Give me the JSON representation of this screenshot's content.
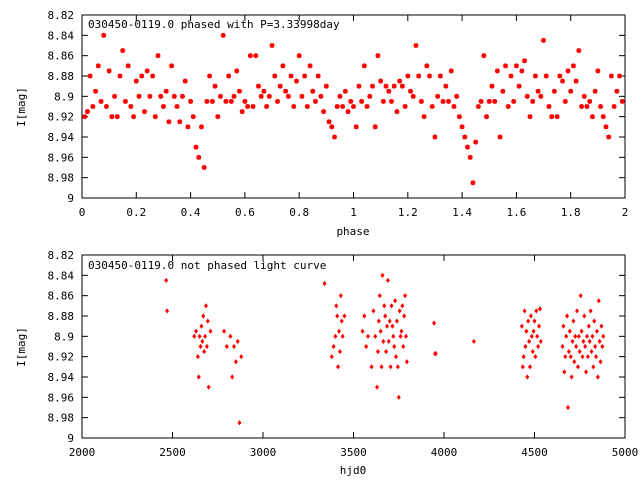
{
  "colors": {
    "points": "#ff0000",
    "axes": "#000000",
    "background": "#ffffff"
  },
  "chart_data": [
    {
      "type": "scatter",
      "title": "030450-0119.0 phased with P=3.33998day",
      "xlabel": "phase",
      "ylabel": "I[mag]",
      "xlim": [
        0,
        2
      ],
      "ylim": [
        9,
        8.82
      ],
      "y_inverted": true,
      "grid": false,
      "x_ticks": [
        "0",
        "0.2",
        "0.4",
        "0.6",
        "0.8",
        "1",
        "1.2",
        "1.4",
        "1.6",
        "1.8",
        "2"
      ],
      "y_ticks": [
        "8.82",
        "8.84",
        "8.86",
        "8.88",
        "8.9",
        "8.92",
        "8.94",
        "8.96",
        "8.98",
        "9"
      ],
      "marker": "star",
      "points": [
        [
          0.01,
          8.92
        ],
        [
          0.02,
          8.915
        ],
        [
          0.03,
          8.88
        ],
        [
          0.04,
          8.91
        ],
        [
          0.05,
          8.895
        ],
        [
          0.06,
          8.87
        ],
        [
          0.07,
          8.905
        ],
        [
          0.08,
          8.84
        ],
        [
          0.09,
          8.91
        ],
        [
          0.1,
          8.875
        ],
        [
          0.11,
          8.92
        ],
        [
          0.12,
          8.9
        ],
        [
          0.13,
          8.92
        ],
        [
          0.14,
          8.88
        ],
        [
          0.15,
          8.855
        ],
        [
          0.16,
          8.905
        ],
        [
          0.17,
          8.87
        ],
        [
          0.18,
          8.91
        ],
        [
          0.19,
          8.92
        ],
        [
          0.2,
          8.885
        ],
        [
          0.21,
          8.9
        ],
        [
          0.22,
          8.88
        ],
        [
          0.23,
          8.915
        ],
        [
          0.24,
          8.875
        ],
        [
          0.25,
          8.9
        ],
        [
          0.26,
          8.88
        ],
        [
          0.27,
          8.92
        ],
        [
          0.28,
          8.86
        ],
        [
          0.29,
          8.9
        ],
        [
          0.3,
          8.91
        ],
        [
          0.31,
          8.895
        ],
        [
          0.32,
          8.925
        ],
        [
          0.33,
          8.87
        ],
        [
          0.34,
          8.9
        ],
        [
          0.35,
          8.91
        ],
        [
          0.36,
          8.925
        ],
        [
          0.37,
          8.9
        ],
        [
          0.38,
          8.885
        ],
        [
          0.39,
          8.93
        ],
        [
          0.4,
          8.905
        ],
        [
          0.41,
          8.92
        ],
        [
          0.42,
          8.95
        ],
        [
          0.43,
          8.96
        ],
        [
          0.44,
          8.93
        ],
        [
          0.45,
          8.97
        ],
        [
          0.46,
          8.905
        ],
        [
          0.47,
          8.88
        ],
        [
          0.48,
          8.905
        ],
        [
          0.49,
          8.89
        ],
        [
          0.5,
          8.92
        ],
        [
          0.51,
          8.9
        ],
        [
          0.52,
          8.84
        ],
        [
          0.53,
          8.905
        ],
        [
          0.54,
          8.88
        ],
        [
          0.55,
          8.905
        ],
        [
          0.56,
          8.9
        ],
        [
          0.57,
          8.875
        ],
        [
          0.58,
          8.895
        ],
        [
          0.59,
          8.915
        ],
        [
          0.6,
          8.905
        ],
        [
          0.61,
          8.91
        ],
        [
          0.62,
          8.86
        ],
        [
          0.63,
          8.91
        ],
        [
          0.64,
          8.86
        ],
        [
          0.65,
          8.89
        ],
        [
          0.66,
          8.9
        ],
        [
          0.67,
          8.895
        ],
        [
          0.68,
          8.91
        ],
        [
          0.69,
          8.9
        ],
        [
          0.7,
          8.85
        ],
        [
          0.71,
          8.88
        ],
        [
          0.72,
          8.905
        ],
        [
          0.73,
          8.89
        ],
        [
          0.74,
          8.87
        ],
        [
          0.75,
          8.895
        ],
        [
          0.76,
          8.9
        ],
        [
          0.77,
          8.88
        ],
        [
          0.78,
          8.91
        ],
        [
          0.79,
          8.885
        ],
        [
          0.8,
          8.86
        ],
        [
          0.81,
          8.9
        ],
        [
          0.82,
          8.88
        ],
        [
          0.83,
          8.91
        ],
        [
          0.84,
          8.87
        ],
        [
          0.85,
          8.895
        ],
        [
          0.86,
          8.905
        ],
        [
          0.87,
          8.88
        ],
        [
          0.88,
          8.9
        ],
        [
          0.89,
          8.915
        ],
        [
          0.9,
          8.89
        ],
        [
          0.91,
          8.925
        ],
        [
          0.92,
          8.93
        ],
        [
          0.93,
          8.94
        ],
        [
          0.94,
          8.91
        ],
        [
          0.95,
          8.9
        ],
        [
          0.96,
          8.91
        ],
        [
          0.97,
          8.895
        ],
        [
          0.98,
          8.915
        ],
        [
          0.99,
          8.905
        ],
        [
          1.0,
          8.91
        ],
        [
          1.01,
          8.93
        ],
        [
          1.02,
          8.89
        ],
        [
          1.03,
          8.905
        ],
        [
          1.04,
          8.87
        ],
        [
          1.05,
          8.91
        ],
        [
          1.06,
          8.9
        ],
        [
          1.07,
          8.89
        ],
        [
          1.08,
          8.93
        ],
        [
          1.09,
          8.86
        ],
        [
          1.1,
          8.885
        ],
        [
          1.11,
          8.905
        ],
        [
          1.12,
          8.89
        ],
        [
          1.13,
          8.895
        ],
        [
          1.14,
          8.905
        ],
        [
          1.15,
          8.89
        ],
        [
          1.16,
          8.915
        ],
        [
          1.17,
          8.885
        ],
        [
          1.18,
          8.89
        ],
        [
          1.19,
          8.91
        ],
        [
          1.2,
          8.88
        ],
        [
          1.21,
          8.895
        ],
        [
          1.22,
          8.9
        ],
        [
          1.23,
          8.85
        ],
        [
          1.24,
          8.88
        ],
        [
          1.25,
          8.905
        ],
        [
          1.26,
          8.92
        ],
        [
          1.27,
          8.87
        ],
        [
          1.28,
          8.88
        ],
        [
          1.29,
          8.91
        ],
        [
          1.3,
          8.94
        ],
        [
          1.31,
          8.9
        ],
        [
          1.32,
          8.88
        ],
        [
          1.33,
          8.905
        ],
        [
          1.34,
          8.89
        ],
        [
          1.35,
          8.905
        ],
        [
          1.36,
          8.875
        ],
        [
          1.37,
          8.91
        ],
        [
          1.38,
          8.9
        ],
        [
          1.39,
          8.92
        ],
        [
          1.4,
          8.93
        ],
        [
          1.41,
          8.94
        ],
        [
          1.42,
          8.95
        ],
        [
          1.43,
          8.96
        ],
        [
          1.44,
          8.985
        ],
        [
          1.45,
          8.945
        ],
        [
          1.46,
          8.91
        ],
        [
          1.47,
          8.905
        ],
        [
          1.48,
          8.86
        ],
        [
          1.49,
          8.92
        ],
        [
          1.5,
          8.905
        ],
        [
          1.51,
          8.89
        ],
        [
          1.52,
          8.905
        ],
        [
          1.53,
          8.875
        ],
        [
          1.54,
          8.94
        ],
        [
          1.55,
          8.895
        ],
        [
          1.56,
          8.87
        ],
        [
          1.57,
          8.91
        ],
        [
          1.58,
          8.88
        ],
        [
          1.59,
          8.905
        ],
        [
          1.6,
          8.87
        ],
        [
          1.61,
          8.89
        ],
        [
          1.62,
          8.875
        ],
        [
          1.63,
          8.865
        ],
        [
          1.64,
          8.9
        ],
        [
          1.65,
          8.92
        ],
        [
          1.66,
          8.905
        ],
        [
          1.67,
          8.88
        ],
        [
          1.68,
          8.895
        ],
        [
          1.69,
          8.9
        ],
        [
          1.7,
          8.845
        ],
        [
          1.71,
          8.88
        ],
        [
          1.72,
          8.91
        ],
        [
          1.73,
          8.92
        ],
        [
          1.74,
          8.895
        ],
        [
          1.75,
          8.92
        ],
        [
          1.76,
          8.88
        ],
        [
          1.77,
          8.885
        ],
        [
          1.78,
          8.905
        ],
        [
          1.79,
          8.875
        ],
        [
          1.8,
          8.895
        ],
        [
          1.81,
          8.87
        ],
        [
          1.82,
          8.885
        ],
        [
          1.83,
          8.855
        ],
        [
          1.84,
          8.91
        ],
        [
          1.85,
          8.9
        ],
        [
          1.86,
          8.91
        ],
        [
          1.87,
          8.905
        ],
        [
          1.88,
          8.92
        ],
        [
          1.89,
          8.895
        ],
        [
          1.9,
          8.875
        ],
        [
          1.91,
          8.91
        ],
        [
          1.92,
          8.92
        ],
        [
          1.93,
          8.93
        ],
        [
          1.94,
          8.94
        ],
        [
          1.95,
          8.88
        ],
        [
          1.96,
          8.91
        ],
        [
          1.97,
          8.895
        ],
        [
          1.98,
          8.88
        ],
        [
          1.99,
          8.905
        ]
      ]
    },
    {
      "type": "scatter",
      "title": "030450-0119.0 not phased light curve",
      "xlabel": "hjd0",
      "ylabel": "I[mag]",
      "xlim": [
        2000,
        5000
      ],
      "ylim": [
        9,
        8.82
      ],
      "y_inverted": true,
      "grid": false,
      "x_ticks": [
        "2000",
        "2500",
        "3000",
        "3500",
        "4000",
        "4500",
        "5000"
      ],
      "y_ticks": [
        "8.82",
        "8.84",
        "8.86",
        "8.88",
        "8.9",
        "8.92",
        "8.94",
        "8.96",
        "8.98",
        "9"
      ],
      "marker": "diamond",
      "points": [
        [
          2465,
          8.845
        ],
        [
          2470,
          8.875
        ],
        [
          2620,
          8.9
        ],
        [
          2630,
          8.895
        ],
        [
          2640,
          8.92
        ],
        [
          2645,
          8.94
        ],
        [
          2650,
          8.9
        ],
        [
          2655,
          8.91
        ],
        [
          2660,
          8.89
        ],
        [
          2665,
          8.905
        ],
        [
          2670,
          8.88
        ],
        [
          2675,
          8.915
        ],
        [
          2680,
          8.9
        ],
        [
          2685,
          8.87
        ],
        [
          2690,
          8.91
        ],
        [
          2695,
          8.885
        ],
        [
          2700,
          8.95
        ],
        [
          2710,
          8.895
        ],
        [
          2785,
          8.895
        ],
        [
          2800,
          8.91
        ],
        [
          2820,
          8.9
        ],
        [
          2830,
          8.94
        ],
        [
          2840,
          8.91
        ],
        [
          2850,
          8.925
        ],
        [
          2860,
          8.905
        ],
        [
          2870,
          8.985
        ],
        [
          2880,
          8.92
        ],
        [
          3340,
          8.848
        ],
        [
          3380,
          8.92
        ],
        [
          3390,
          8.91
        ],
        [
          3400,
          8.9
        ],
        [
          3405,
          8.87
        ],
        [
          3410,
          8.88
        ],
        [
          3415,
          8.93
        ],
        [
          3420,
          8.895
        ],
        [
          3425,
          8.915
        ],
        [
          3430,
          8.86
        ],
        [
          3435,
          8.885
        ],
        [
          3440,
          8.9
        ],
        [
          3450,
          8.88
        ],
        [
          3550,
          8.895
        ],
        [
          3560,
          8.88
        ],
        [
          3570,
          8.91
        ],
        [
          3580,
          8.9
        ],
        [
          3600,
          8.93
        ],
        [
          3610,
          8.875
        ],
        [
          3620,
          8.9
        ],
        [
          3630,
          8.95
        ],
        [
          3635,
          8.915
        ],
        [
          3640,
          8.885
        ],
        [
          3645,
          8.86
        ],
        [
          3650,
          8.895
        ],
        [
          3655,
          8.93
        ],
        [
          3660,
          8.84
        ],
        [
          3665,
          8.905
        ],
        [
          3670,
          8.87
        ],
        [
          3675,
          8.88
        ],
        [
          3680,
          8.915
        ],
        [
          3685,
          8.89
        ],
        [
          3690,
          8.845
        ],
        [
          3695,
          8.905
        ],
        [
          3700,
          8.885
        ],
        [
          3705,
          8.93
        ],
        [
          3710,
          8.87
        ],
        [
          3715,
          8.89
        ],
        [
          3720,
          8.9
        ],
        [
          3725,
          8.91
        ],
        [
          3730,
          8.865
        ],
        [
          3735,
          8.92
        ],
        [
          3740,
          8.885
        ],
        [
          3745,
          8.93
        ],
        [
          3750,
          8.96
        ],
        [
          3755,
          8.875
        ],
        [
          3760,
          8.9
        ],
        [
          3765,
          8.895
        ],
        [
          3770,
          8.87
        ],
        [
          3775,
          8.91
        ],
        [
          3780,
          8.88
        ],
        [
          3785,
          8.86
        ],
        [
          3790,
          8.9
        ],
        [
          3795,
          8.925
        ],
        [
          3945,
          8.887
        ],
        [
          3950,
          8.917
        ],
        [
          3955,
          8.917
        ],
        [
          4165,
          8.905
        ],
        [
          4430,
          8.89
        ],
        [
          4435,
          8.93
        ],
        [
          4440,
          8.92
        ],
        [
          4445,
          8.875
        ],
        [
          4450,
          8.91
        ],
        [
          4455,
          8.895
        ],
        [
          4460,
          8.94
        ],
        [
          4465,
          8.885
        ],
        [
          4470,
          8.905
        ],
        [
          4475,
          8.93
        ],
        [
          4480,
          8.88
        ],
        [
          4485,
          8.9
        ],
        [
          4490,
          8.915
        ],
        [
          4495,
          8.895
        ],
        [
          4500,
          8.885
        ],
        [
          4505,
          8.92
        ],
        [
          4510,
          8.875
        ],
        [
          4515,
          8.9
        ],
        [
          4520,
          8.91
        ],
        [
          4525,
          8.89
        ],
        [
          4530,
          8.873
        ],
        [
          4535,
          8.905
        ],
        [
          4655,
          8.91
        ],
        [
          4660,
          8.89
        ],
        [
          4665,
          8.935
        ],
        [
          4670,
          8.92
        ],
        [
          4675,
          8.9
        ],
        [
          4680,
          8.88
        ],
        [
          4685,
          8.97
        ],
        [
          4690,
          8.915
        ],
        [
          4695,
          8.895
        ],
        [
          4700,
          8.92
        ],
        [
          4705,
          8.94
        ],
        [
          4710,
          8.905
        ],
        [
          4715,
          8.885
        ],
        [
          4720,
          8.925
        ],
        [
          4725,
          8.9
        ],
        [
          4730,
          8.91
        ],
        [
          4735,
          8.875
        ],
        [
          4740,
          8.93
        ],
        [
          4745,
          8.9
        ],
        [
          4750,
          8.915
        ],
        [
          4755,
          8.86
        ],
        [
          4760,
          8.895
        ],
        [
          4765,
          8.92
        ],
        [
          4770,
          8.905
        ],
        [
          4775,
          8.88
        ],
        [
          4780,
          8.91
        ],
        [
          4785,
          8.935
        ],
        [
          4790,
          8.9
        ],
        [
          4795,
          8.92
        ],
        [
          4800,
          8.89
        ],
        [
          4805,
          8.905
        ],
        [
          4810,
          8.875
        ],
        [
          4815,
          8.915
        ],
        [
          4820,
          8.9
        ],
        [
          4825,
          8.93
        ],
        [
          4830,
          8.885
        ],
        [
          4835,
          8.91
        ],
        [
          4840,
          8.92
        ],
        [
          4845,
          8.895
        ],
        [
          4850,
          8.94
        ],
        [
          4855,
          8.865
        ],
        [
          4860,
          8.905
        ],
        [
          4865,
          8.925
        ],
        [
          4870,
          8.89
        ],
        [
          4875,
          8.91
        ],
        [
          4880,
          8.9
        ]
      ]
    }
  ]
}
